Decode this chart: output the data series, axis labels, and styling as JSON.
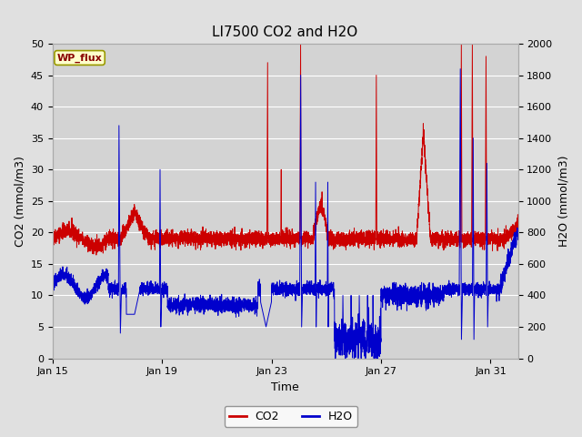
{
  "title": "LI7500 CO2 and H2O",
  "xlabel": "Time",
  "ylabel_left": "CO2 (mmol/m3)",
  "ylabel_right": "H2O (mmol/m3)",
  "legend_label": "WP_flux",
  "co2_label": "CO2",
  "h2o_label": "H2O",
  "co2_color": "#cc0000",
  "h2o_color": "#0000cc",
  "ylim_left": [
    0,
    50
  ],
  "ylim_right": [
    0,
    2000
  ],
  "yticks_left": [
    0,
    5,
    10,
    15,
    20,
    25,
    30,
    35,
    40,
    45,
    50
  ],
  "yticks_right": [
    0,
    200,
    400,
    600,
    800,
    1000,
    1200,
    1400,
    1600,
    1800,
    2000
  ],
  "background_color": "#e0e0e0",
  "plot_bg_color": "#d3d3d3",
  "legend_box_facecolor": "#ffffcc",
  "legend_box_edge": "#999900",
  "legend_text_color": "#880000",
  "title_fontsize": 11,
  "axis_label_fontsize": 9,
  "tick_fontsize": 8,
  "xtick_positions": [
    0,
    4,
    8,
    12,
    16
  ],
  "xtick_labels": [
    "Jan 15",
    "Jan 19",
    "Jan 23",
    "Jan 27",
    "Jan 31"
  ],
  "xlim": [
    0,
    17
  ]
}
